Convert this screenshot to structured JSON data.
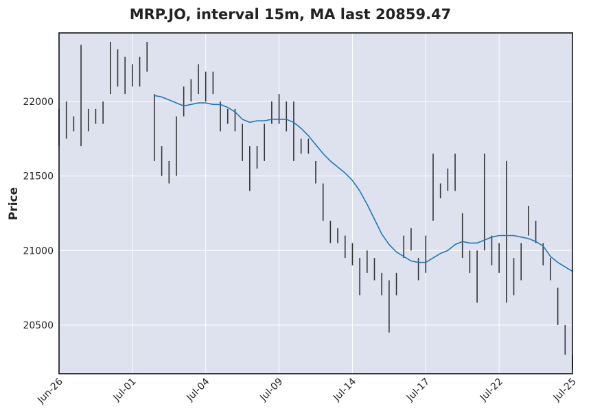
{
  "chart_data": {
    "type": "candlestick",
    "title": "MRP.JO, interval 15m, MA last 20859.47",
    "ylabel": "Price",
    "categories": [
      "Jun-26",
      null,
      null,
      null,
      null,
      null,
      null,
      null,
      null,
      null,
      "Jul-01",
      null,
      null,
      null,
      null,
      null,
      null,
      null,
      null,
      null,
      "Jul-04",
      null,
      null,
      null,
      null,
      null,
      null,
      null,
      null,
      null,
      "Jul-09",
      null,
      null,
      null,
      null,
      null,
      null,
      null,
      null,
      null,
      "Jul-14",
      null,
      null,
      null,
      null,
      null,
      null,
      null,
      null,
      null,
      "Jul-17",
      null,
      null,
      null,
      null,
      null,
      null,
      null,
      null,
      null,
      "Jul-22",
      null,
      null,
      null,
      null,
      null,
      null,
      null,
      null,
      null,
      "Jul-25"
    ],
    "high": [
      21950,
      22000,
      21900,
      22380,
      21950,
      21950,
      22000,
      22400,
      22350,
      22300,
      22250,
      22300,
      22400,
      22050,
      21700,
      21600,
      21900,
      22100,
      22150,
      22250,
      22200,
      22200,
      22000,
      21950,
      21950,
      21850,
      21700,
      21700,
      21850,
      22000,
      22050,
      22000,
      22000,
      21750,
      21750,
      21600,
      21450,
      21200,
      21150,
      21100,
      21050,
      20950,
      21000,
      20950,
      20850,
      20800,
      20850,
      21100,
      21150,
      20950,
      21100,
      21650,
      21450,
      21550,
      21650,
      21250,
      21000,
      21000,
      21650,
      21100,
      21050,
      21600,
      20950,
      21050,
      21300,
      21200,
      21050,
      20950,
      20750,
      20500,
      20300
    ],
    "low": [
      21700,
      21750,
      21800,
      21700,
      21800,
      21850,
      21850,
      22050,
      22100,
      22050,
      22100,
      22100,
      22200,
      21600,
      21500,
      21450,
      21500,
      21900,
      22000,
      22050,
      22000,
      22050,
      21800,
      21850,
      21800,
      21600,
      21400,
      21550,
      21600,
      21850,
      21850,
      21800,
      21600,
      21650,
      21650,
      21450,
      21200,
      21050,
      21050,
      20950,
      20900,
      20700,
      20850,
      20800,
      20700,
      20450,
      20700,
      20950,
      21000,
      20800,
      20850,
      21200,
      21350,
      21400,
      21400,
      20950,
      20850,
      20650,
      21000,
      20900,
      20850,
      20650,
      20700,
      20800,
      21100,
      21050,
      20900,
      20800,
      20500,
      20300,
      20200
    ],
    "ma": [
      null,
      null,
      null,
      null,
      null,
      null,
      null,
      null,
      null,
      null,
      null,
      null,
      null,
      22040,
      22030,
      22010,
      21990,
      21970,
      21980,
      21990,
      21990,
      21980,
      21980,
      21960,
      21930,
      21880,
      21860,
      21870,
      21870,
      21880,
      21880,
      21880,
      21860,
      21820,
      21770,
      21710,
      21650,
      21600,
      21560,
      21520,
      21470,
      21400,
      21310,
      21210,
      21110,
      21040,
      20990,
      20960,
      20930,
      20920,
      20920,
      20950,
      20980,
      21000,
      21040,
      21060,
      21050,
      21050,
      21070,
      21090,
      21100,
      21100,
      21100,
      21090,
      21080,
      21060,
      21030,
      20960,
      20920,
      20890,
      20860
    ],
    "color": "#333333",
    "ma_color": "#1f77b4",
    "ylim": [
      20173,
      22460
    ],
    "yticks": [
      20500,
      21000,
      21500,
      22000
    ],
    "grid": true
  }
}
